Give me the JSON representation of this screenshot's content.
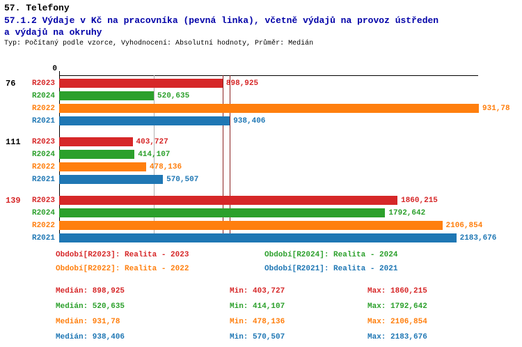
{
  "header": {
    "title": "57. Telefony",
    "subtitle_line1": "57.1.2 Výdaje v Kč na pracovníka (pevná linka), včetně výdajů na provoz ústředen",
    "subtitle_line2": "a výdajů na okruhy",
    "meta": "Typ: Počítaný podle vzorce, Vyhodnocení: Absolutní hodnoty, Průměr: Medián"
  },
  "chart_data": {
    "type": "bar",
    "orientation": "horizontal",
    "title": "57.1.2 Výdaje v Kč na pracovníka (pevná linka), včetně výdajů na provoz ústředen a výdajů na okruhy",
    "axis": {
      "origin_label": "0",
      "xlim": [
        0,
        2300
      ],
      "unit": "Kč"
    },
    "series_colors": {
      "R2023": "#d62728",
      "R2024": "#2ca02c",
      "R2022": "#ff7f0e",
      "R2021": "#1f77b4"
    },
    "groups": [
      {
        "label": "76",
        "label_color": "#000000",
        "bars": [
          {
            "series": "R2023",
            "value": 898.925,
            "value_label": "898,925"
          },
          {
            "series": "R2024",
            "value": 520.635,
            "value_label": "520,635"
          },
          {
            "series": "R2022",
            "value": 931.78,
            "value_label": "931,78",
            "bar_overflow": true
          },
          {
            "series": "R2021",
            "value": 938.406,
            "value_label": "938,406"
          }
        ]
      },
      {
        "label": "111",
        "label_color": "#000000",
        "bars": [
          {
            "series": "R2023",
            "value": 403.727,
            "value_label": "403,727"
          },
          {
            "series": "R2024",
            "value": 414.107,
            "value_label": "414,107"
          },
          {
            "series": "R2022",
            "value": 478.136,
            "value_label": "478,136"
          },
          {
            "series": "R2021",
            "value": 570.507,
            "value_label": "570,507"
          }
        ]
      },
      {
        "label": "139",
        "label_color": "#d62728",
        "bars": [
          {
            "series": "R2023",
            "value": 1860.215,
            "value_label": "1860,215"
          },
          {
            "series": "R2024",
            "value": 1792.642,
            "value_label": "1792,642"
          },
          {
            "series": "R2022",
            "value": 2106.854,
            "value_label": "2106,854"
          },
          {
            "series": "R2021",
            "value": 2183.676,
            "value_label": "2183,676"
          }
        ]
      }
    ],
    "median_lines": [
      {
        "value": 520.635,
        "color": "#b0b0b0"
      },
      {
        "value": 898.925,
        "color": "#8b2323"
      },
      {
        "value": 938.406,
        "color": "#8b2323"
      }
    ]
  },
  "legend": [
    {
      "text": "Období[R2023]: Realita - 2023",
      "color": "#d62728",
      "col": 0,
      "row": 0
    },
    {
      "text": "Období[R2024]: Realita - 2024",
      "color": "#2ca02c",
      "col": 1,
      "row": 0
    },
    {
      "text": "Období[R2022]: Realita - 2022",
      "color": "#ff7f0e",
      "col": 0,
      "row": 1
    },
    {
      "text": "Období[R2021]: Realita - 2021",
      "color": "#1f77b4",
      "col": 1,
      "row": 1
    }
  ],
  "stats": {
    "labels": {
      "median": "Medián",
      "min": "Min",
      "max": "Max"
    },
    "rows": [
      {
        "color": "#d62728",
        "median": "898,925",
        "min": "403,727",
        "max": "1860,215"
      },
      {
        "color": "#2ca02c",
        "median": "520,635",
        "min": "414,107",
        "max": "1792,642"
      },
      {
        "color": "#ff7f0e",
        "median": "931,78",
        "min": "478,136",
        "max": "2106,854"
      },
      {
        "color": "#1f77b4",
        "median": "938,406",
        "min": "570,507",
        "max": "2183,676"
      }
    ]
  }
}
